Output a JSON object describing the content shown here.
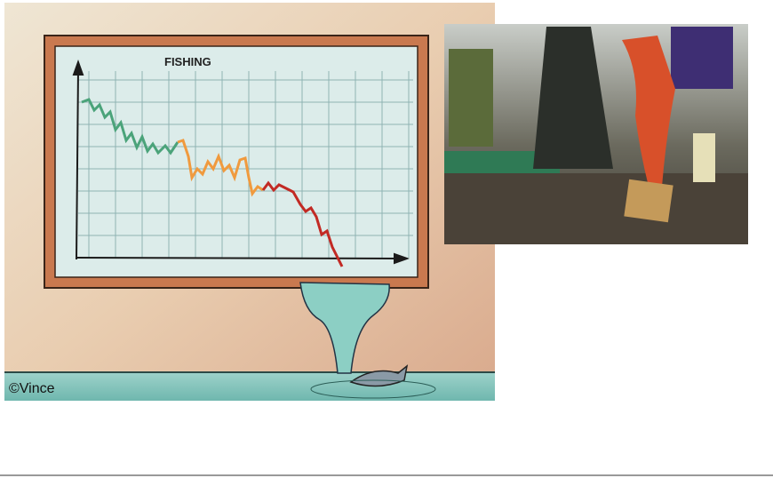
{
  "cartoon": {
    "title": "FISHING",
    "credit": "©Vince"
  }
}
